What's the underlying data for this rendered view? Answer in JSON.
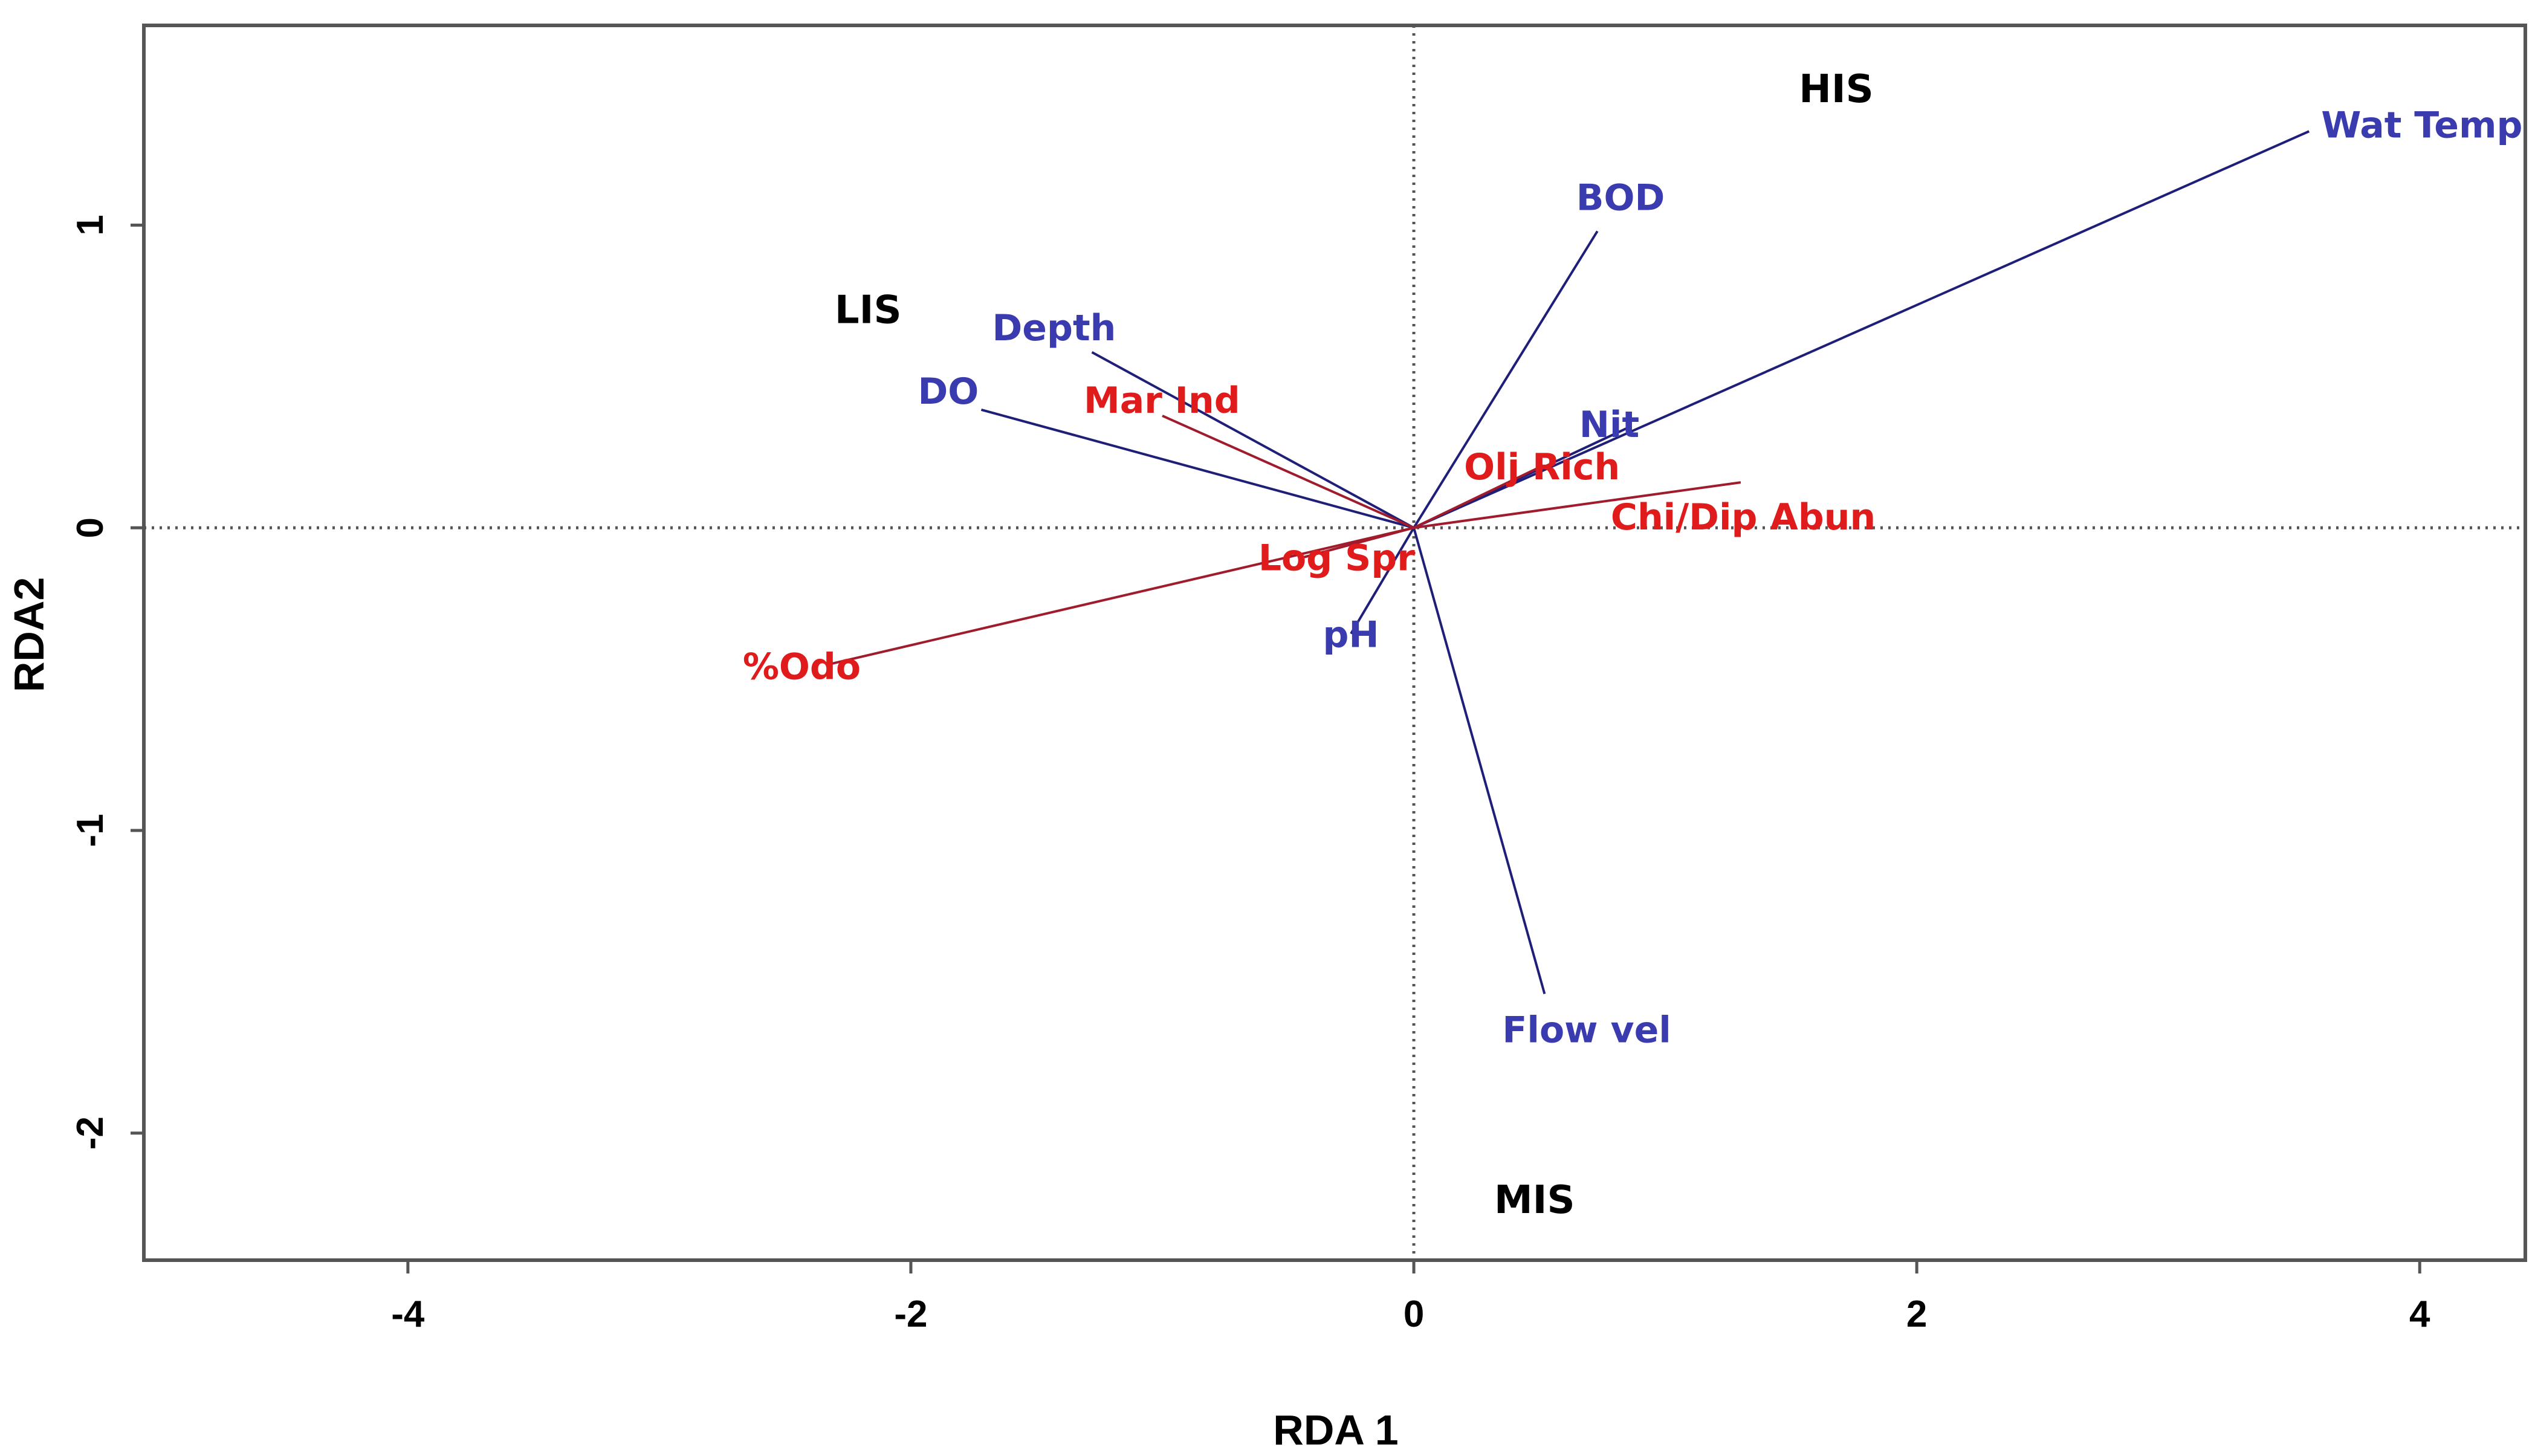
{
  "chart_data": {
    "type": "scatter",
    "subtype": "rda-biplot",
    "title": "",
    "xlabel": "RDA 1",
    "ylabel": "RDA2",
    "xlim": [
      -5.05,
      4.42
    ],
    "ylim": [
      -2.42,
      1.66
    ],
    "x_ticks": [
      -4,
      -2,
      0,
      2,
      4
    ],
    "y_ticks": [
      -2,
      -1,
      0,
      1
    ],
    "x_tick_labels": [
      "-4",
      "-2",
      "0",
      "2",
      "4"
    ],
    "y_tick_labels": [
      "-2",
      "-1",
      "0",
      "1"
    ],
    "reference_lines": {
      "x": 0,
      "y": 0,
      "style": "dotted"
    },
    "grid": false,
    "colors": {
      "environmental": "#3b3bb0",
      "response": "#e01b1b",
      "env_line": "#1f1f7a",
      "resp_line": "#a01c2c",
      "site": "#000000"
    },
    "environmental_vectors": [
      {
        "name": "Wat Temp",
        "x": 3.56,
        "y": 1.31
      },
      {
        "name": "BOD",
        "x": 0.73,
        "y": 0.98
      },
      {
        "name": "Depth",
        "x": -1.28,
        "y": 0.58
      },
      {
        "name": "DO",
        "x": -1.72,
        "y": 0.39
      },
      {
        "name": "Flow vel",
        "x": 0.52,
        "y": -1.54
      },
      {
        "name": "Nit",
        "x": 0.85,
        "y": 0.33
      },
      {
        "name": "pH",
        "x": -0.25,
        "y": -0.35
      }
    ],
    "response_vectors": [
      {
        "name": "Mar Ind",
        "x": -1.0,
        "y": 0.37
      },
      {
        "name": "%Odo",
        "x": -2.32,
        "y": -0.45
      },
      {
        "name": "Log Spr",
        "x": -0.45,
        "y": -0.1
      },
      {
        "name": "Olj Rich",
        "x": 0.5,
        "y": 0.2
      },
      {
        "name": "Chi/Dip Abun",
        "x": 1.3,
        "y": 0.15
      }
    ],
    "sites": [
      {
        "name": "HIS",
        "x": 1.68,
        "y": 1.45
      },
      {
        "name": "LIS",
        "x": -2.17,
        "y": 0.72
      },
      {
        "name": "MIS",
        "x": 0.48,
        "y": -2.22
      }
    ]
  }
}
